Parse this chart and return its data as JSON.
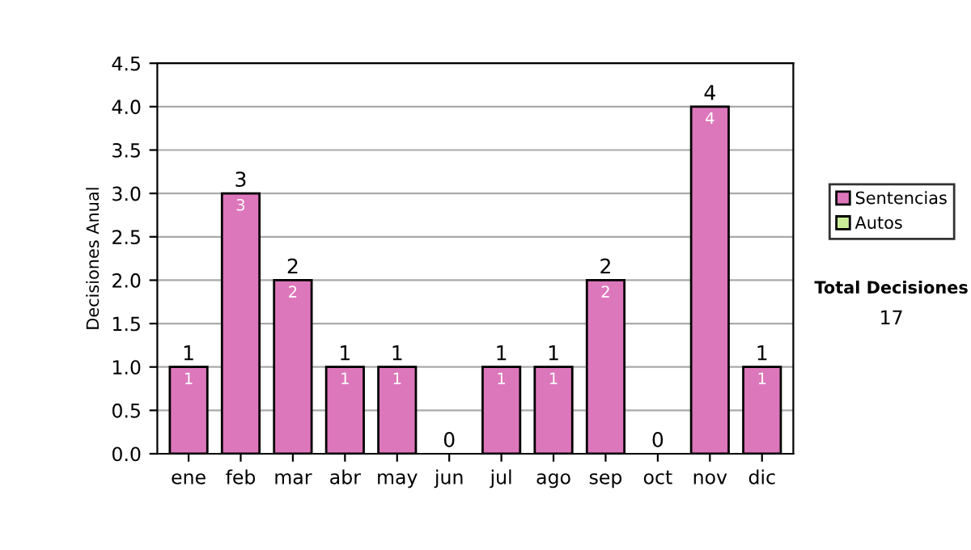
{
  "chart_data": {
    "type": "bar",
    "stacked": true,
    "ylabel": "Decisiones Anual",
    "categories": [
      "ene",
      "feb",
      "mar",
      "abr",
      "may",
      "jun",
      "jul",
      "ago",
      "sep",
      "oct",
      "nov",
      "dic"
    ],
    "series": [
      {
        "name": "Sentencias",
        "color": "#dd77bb",
        "values": [
          1,
          3,
          2,
          1,
          1,
          0,
          1,
          1,
          2,
          0,
          4,
          1
        ],
        "value_labels": [
          "1",
          "3",
          "2",
          "1",
          "1",
          null,
          "1",
          "1",
          "2",
          null,
          "4",
          "1"
        ]
      },
      {
        "name": "Autos",
        "color": "#ccee99",
        "values": [
          0,
          0,
          0,
          0,
          0,
          0,
          0,
          0,
          0,
          0,
          0,
          0
        ]
      }
    ],
    "totals": [
      "1",
      "3",
      "2",
      "1",
      "1",
      "0",
      "1",
      "1",
      "2",
      "0",
      "4",
      "1"
    ],
    "ylim": [
      0,
      4.5
    ],
    "yticks": [
      "0.0",
      "0.5",
      "1.0",
      "1.5",
      "2.0",
      "2.5",
      "3.0",
      "3.5",
      "4.0",
      "4.5"
    ],
    "grid": "y",
    "legend": "right",
    "annotations": [
      "Total Decisiones",
      "17"
    ]
  }
}
